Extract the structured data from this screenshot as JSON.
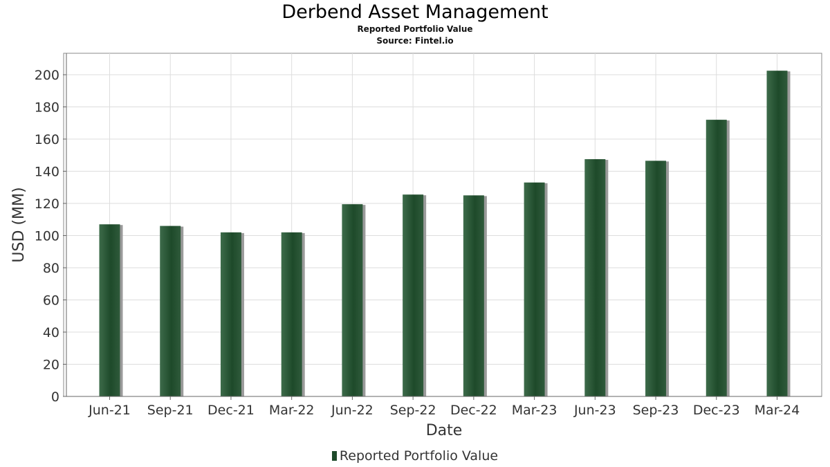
{
  "header": {
    "title": "Derbend Asset Management",
    "subtitle": "Reported Portfolio Value",
    "source": "Source: Fintel.io"
  },
  "legend": {
    "label": "Reported Portfolio Value"
  },
  "colors": {
    "bar": "#1e4a2a",
    "bar_highlight": "#3d6b4a",
    "shadow": "#9a9a9a",
    "grid": "#dddddd"
  },
  "chart_data": {
    "type": "bar",
    "title": "Derbend Asset Management",
    "xlabel": "Date",
    "ylabel": "USD (MM)",
    "ylim": [
      0,
      210
    ],
    "yticks": [
      0,
      20,
      40,
      60,
      80,
      100,
      120,
      140,
      160,
      180,
      200
    ],
    "grid": true,
    "legend_position": "bottom",
    "categories": [
      "Jun-21",
      "Sep-21",
      "Dec-21",
      "Mar-22",
      "Jun-22",
      "Sep-22",
      "Dec-22",
      "Mar-23",
      "Jun-23",
      "Sep-23",
      "Dec-23",
      "Mar-24"
    ],
    "series": [
      {
        "name": "Reported Portfolio Value",
        "values": [
          107,
          106,
          102,
          102,
          119.5,
          125.5,
          125,
          133,
          147.5,
          146.5,
          172,
          202.5
        ]
      }
    ]
  }
}
